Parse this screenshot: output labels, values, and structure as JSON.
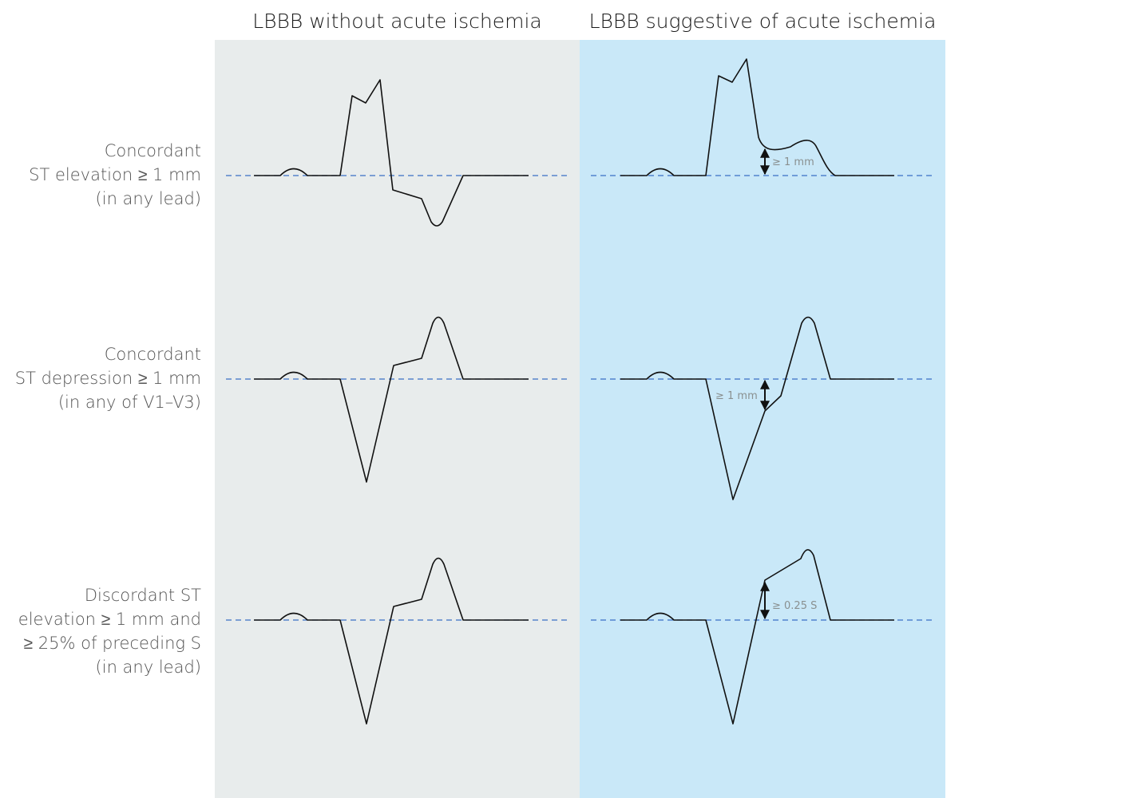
{
  "columns": {
    "left": "LBBB without acute ischemia",
    "right": "LBBB suggestive of acute ischemia"
  },
  "rows": [
    {
      "id": "concordant-elevation",
      "label_lines": [
        "Concordant",
        "ST elevation ≥ 1 mm",
        "(in any lead)"
      ],
      "measurement": "≥ 1 mm"
    },
    {
      "id": "concordant-depression",
      "label_lines": [
        "Concordant",
        "ST depression ≥ 1 mm",
        "(in any of V1–V3)"
      ],
      "measurement": "≥ 1 mm"
    },
    {
      "id": "discordant-elevation",
      "label_lines": [
        "Discordant ST",
        "elevation ≥ 1 mm and",
        "≥ 25% of preceding S",
        "(in any lead)"
      ],
      "measurement": "≥ 0.25 S"
    }
  ],
  "colors": {
    "left_panel": "#e8ecec",
    "right_panel": "#c9e8f8",
    "baseline": "#3a6fc4",
    "trace": "#111111"
  }
}
